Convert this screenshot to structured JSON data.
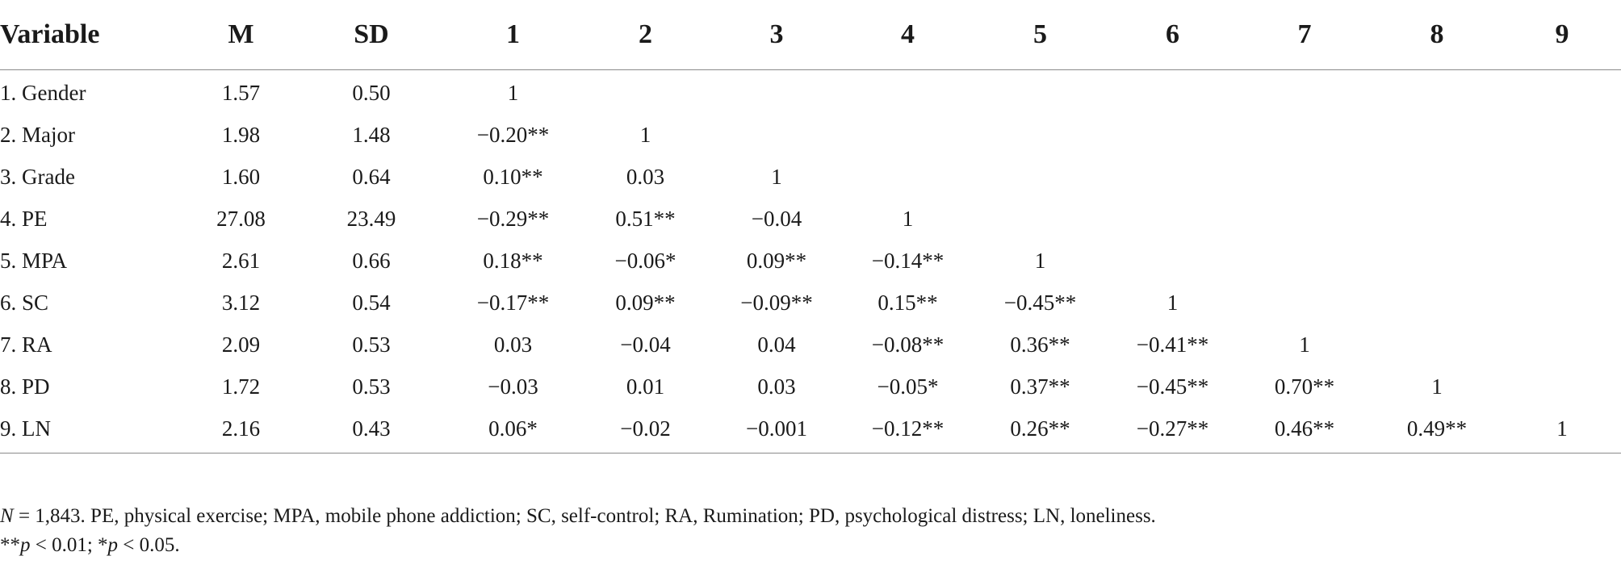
{
  "table": {
    "headers": [
      "Variable",
      "M",
      "SD",
      "1",
      "2",
      "3",
      "4",
      "5",
      "6",
      "7",
      "8",
      "9"
    ],
    "rows": [
      [
        "1. Gender",
        "1.57",
        "0.50",
        "1",
        "",
        "",
        "",
        "",
        "",
        "",
        "",
        ""
      ],
      [
        "2. Major",
        "1.98",
        "1.48",
        "−0.20**",
        "1",
        "",
        "",
        "",
        "",
        "",
        "",
        ""
      ],
      [
        "3. Grade",
        "1.60",
        "0.64",
        "0.10**",
        "0.03",
        "1",
        "",
        "",
        "",
        "",
        "",
        ""
      ],
      [
        "4. PE",
        "27.08",
        "23.49",
        "−0.29**",
        "0.51**",
        "−0.04",
        "1",
        "",
        "",
        "",
        "",
        ""
      ],
      [
        "5. MPA",
        "2.61",
        "0.66",
        "0.18**",
        "−0.06*",
        "0.09**",
        "−0.14**",
        "1",
        "",
        "",
        "",
        ""
      ],
      [
        "6. SC",
        "3.12",
        "0.54",
        "−0.17**",
        "0.09**",
        "−0.09**",
        "0.15**",
        "−0.45**",
        "1",
        "",
        "",
        ""
      ],
      [
        "7. RA",
        "2.09",
        "0.53",
        "0.03",
        "−0.04",
        "0.04",
        "−0.08**",
        "0.36**",
        "−0.41**",
        "1",
        "",
        ""
      ],
      [
        "8. PD",
        "1.72",
        "0.53",
        "−0.03",
        "0.01",
        "0.03",
        "−0.05*",
        "0.37**",
        "−0.45**",
        "0.70**",
        "1",
        ""
      ],
      [
        "9. LN",
        "2.16",
        "0.43",
        "0.06*",
        "−0.02",
        "−0.001",
        "−0.12**",
        "0.26**",
        "−0.27**",
        "0.46**",
        "0.49**",
        "1"
      ]
    ]
  },
  "notes": {
    "line1_n": "N",
    "line1_rest": " = 1,843. PE, physical exercise; MPA, mobile phone addiction; SC, self-control; RA, Rumination; PD, psychological distress; LN, loneliness.",
    "line2_stars1": "**",
    "line2_p1": "p",
    "line2_rest1": " < 0.01;  *",
    "line2_p2": "p",
    "line2_rest2": " < 0.05."
  }
}
